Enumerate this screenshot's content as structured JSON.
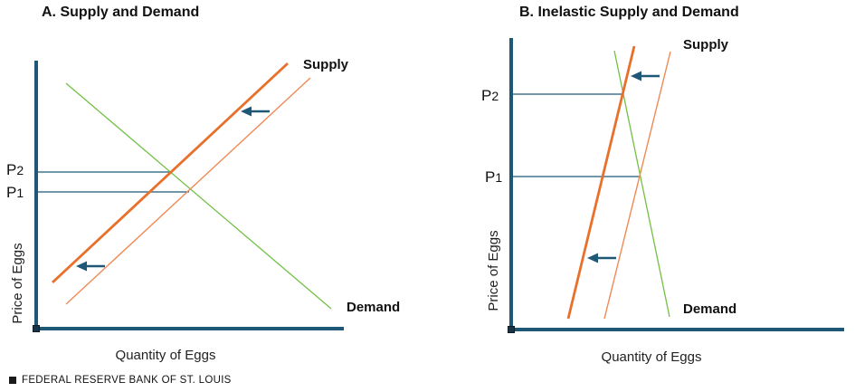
{
  "colors": {
    "axis": "#1f5777",
    "supply_new": "#e8702a",
    "supply_old": "#ee8a55",
    "demand": "#73c045",
    "price_line": "#1f5777",
    "arrow": "#1f5777"
  },
  "panels": [
    {
      "id": "a",
      "title": "A. Supply and Demand",
      "supply_label": "Supply",
      "demand_label": "Demand",
      "p2_label": "P",
      "p2_sub": "2",
      "p1_label": "P",
      "p1_sub": "1",
      "xlabel": "Quantity of Eggs",
      "ylabel": "Price of Eggs"
    },
    {
      "id": "b",
      "title": "B. Inelastic Supply and Demand",
      "supply_label": "Supply",
      "demand_label": "Demand",
      "p2_label": "P",
      "p2_sub": "2",
      "p1_label": "P",
      "p1_sub": "1",
      "xlabel": "Quantity of Eggs",
      "ylabel": "Price of Eggs"
    }
  ],
  "source": "FEDERAL RESERVE BANK OF ST. LOUIS"
}
